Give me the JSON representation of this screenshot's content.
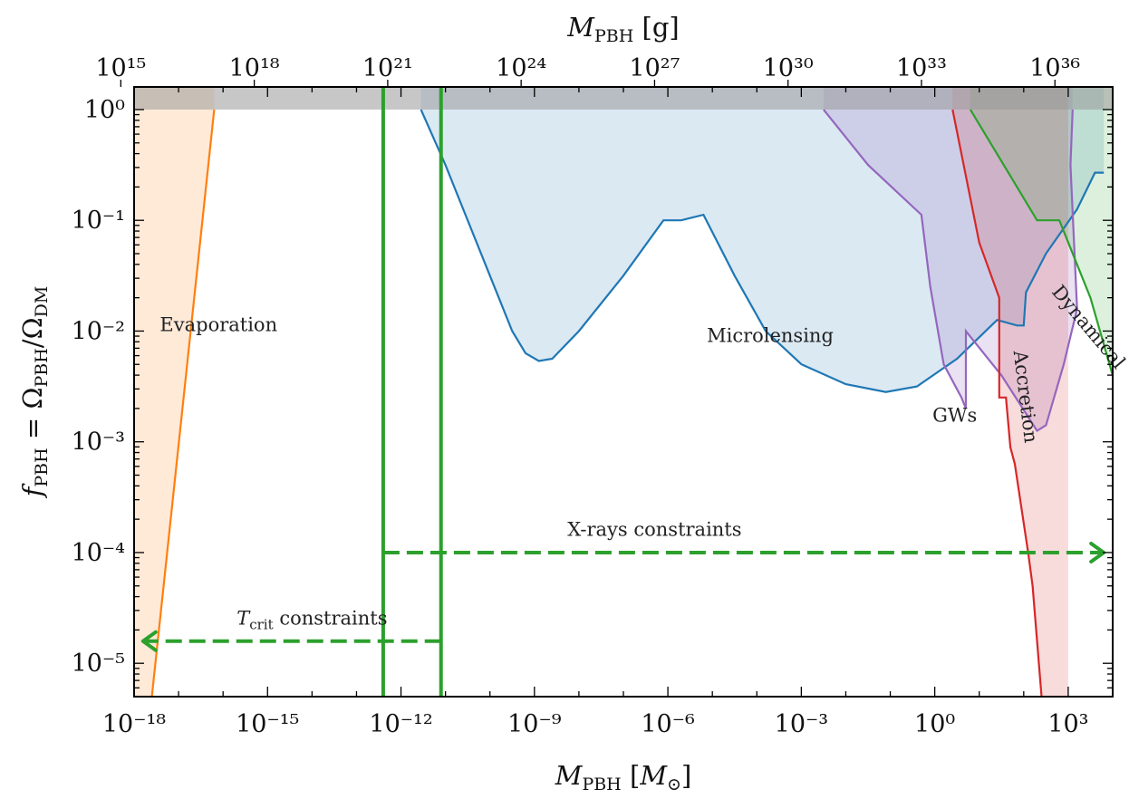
{
  "chart_data": {
    "type": "area",
    "title": "",
    "xlabel": "M_PBH [M_⊙]",
    "x2label": "M_PBH [g]",
    "ylabel": "f_PBH = Ω_PBH/Ω_DM",
    "xscale": "log",
    "yscale": "log",
    "xlim": [
      1e-18,
      10000
    ],
    "ylim": [
      5e-06,
      1.6
    ],
    "x2_per_x": 1.989e+33,
    "xticks": [
      -18,
      -15,
      -12,
      -9,
      -6,
      -3,
      0,
      3
    ],
    "xtick_labels": [
      "10⁻¹⁸",
      "10⁻¹⁵",
      "10⁻¹²",
      "10⁻⁹",
      "10⁻⁶",
      "10⁻³",
      "10⁰",
      "10³"
    ],
    "x2ticks": [
      15,
      18,
      21,
      24,
      27,
      30,
      33,
      36
    ],
    "x2tick_labels": [
      "10¹⁵",
      "10¹⁸",
      "10²¹",
      "10²⁴",
      "10²⁷",
      "10³⁰",
      "10³³",
      "10³⁶"
    ],
    "yticks": [
      0,
      -1,
      -2,
      -3,
      -4,
      -5
    ],
    "ytick_labels": [
      "10⁰",
      "10⁻¹",
      "10⁻²",
      "10⁻³",
      "10⁻⁴",
      "10⁻⁵"
    ],
    "grid": false,
    "legend": "none",
    "colors": {
      "evaporation": "#ff7f0e",
      "microlensing": "#1f77b4",
      "gws": "#9467bd",
      "accretion": "#d62728",
      "dynamical": "#2ca02c",
      "constraints": "#2ca02c",
      "band": "#999999"
    },
    "series": [
      {
        "name": "Evaporation",
        "key": "evaporation",
        "points": [
          [
            -17.6,
            -5.3
          ],
          [
            -16.2,
            0.0
          ]
        ]
      },
      {
        "name": "Microlensing",
        "key": "microlensing",
        "points": [
          [
            -11.55,
            0.0
          ],
          [
            -11.0,
            -0.5
          ],
          [
            -10.0,
            -1.5
          ],
          [
            -9.5,
            -2.0
          ],
          [
            -9.2,
            -2.2
          ],
          [
            -8.9,
            -2.27
          ],
          [
            -8.6,
            -2.25
          ],
          [
            -8.0,
            -2.0
          ],
          [
            -7.0,
            -1.5
          ],
          [
            -6.1,
            -1.0
          ],
          [
            -5.7,
            -1.0
          ],
          [
            -5.2,
            -0.95
          ],
          [
            -4.5,
            -1.5
          ],
          [
            -3.8,
            -2.0
          ],
          [
            -3.0,
            -2.3
          ],
          [
            -2.0,
            -2.48
          ],
          [
            -1.1,
            -2.55
          ],
          [
            -0.4,
            -2.5
          ],
          [
            0.5,
            -2.25
          ],
          [
            1.4,
            -1.9
          ],
          [
            1.85,
            -1.95
          ],
          [
            2.0,
            -1.95
          ],
          [
            2.05,
            -1.65
          ],
          [
            2.5,
            -1.3
          ],
          [
            3.2,
            -0.9
          ],
          [
            3.6,
            -0.57
          ],
          [
            3.8,
            -0.57
          ]
        ]
      },
      {
        "name": "GWs",
        "key": "gws",
        "points": [
          [
            -2.5,
            0.0
          ],
          [
            -1.5,
            -0.5
          ],
          [
            -0.3,
            -0.95
          ],
          [
            -0.1,
            -1.6
          ],
          [
            0.2,
            -2.3
          ],
          [
            0.6,
            -2.6
          ],
          [
            0.7,
            -2.7
          ],
          [
            0.7,
            -2.0
          ],
          [
            1.5,
            -2.4
          ],
          [
            2.3,
            -2.9
          ],
          [
            2.5,
            -2.85
          ],
          [
            2.9,
            -2.3
          ],
          [
            3.2,
            -1.8
          ],
          [
            3.05,
            -0.5
          ],
          [
            3.1,
            0.0
          ]
        ]
      },
      {
        "name": "Accretion",
        "key": "accretion",
        "points": [
          [
            0.4,
            0.0
          ],
          [
            1.0,
            -1.2
          ],
          [
            1.45,
            -1.7
          ],
          [
            1.45,
            -2.6
          ],
          [
            1.6,
            -2.6
          ],
          [
            1.7,
            -3.05
          ],
          [
            1.8,
            -3.2
          ],
          [
            2.1,
            -4.0
          ],
          [
            2.2,
            -4.3
          ],
          [
            2.4,
            -5.3
          ]
        ]
      },
      {
        "name": "Dynamical",
        "key": "dynamical",
        "points": [
          [
            0.8,
            0.0
          ],
          [
            1.7,
            -0.6
          ],
          [
            2.3,
            -1.0
          ],
          [
            2.8,
            -1.0
          ],
          [
            3.5,
            -1.7
          ],
          [
            4.0,
            -2.4
          ]
        ]
      }
    ],
    "fills": [
      {
        "key": "evaporation",
        "polygon": [
          [
            -18.0,
            0.204
          ],
          [
            -16.2,
            0.204
          ],
          [
            -16.2,
            0.0
          ],
          [
            -17.6,
            -5.3
          ],
          [
            -18.0,
            -5.3
          ]
        ]
      },
      {
        "key": "microlensing",
        "polygon": [
          [
            -11.55,
            0.204
          ],
          [
            3.8,
            0.204
          ]
        ]
      },
      {
        "key": "gws",
        "polygon": [
          [
            -2.5,
            0.204
          ],
          [
            3.1,
            0.204
          ]
        ]
      },
      {
        "key": "accretion",
        "polygon": [
          [
            0.4,
            0.204
          ],
          [
            3.0,
            0.204
          ],
          [
            3.0,
            -5.3
          ]
        ]
      },
      {
        "key": "dynamical",
        "polygon": [
          [
            0.8,
            0.204
          ],
          [
            4.0,
            0.204
          ]
        ]
      }
    ],
    "band": {
      "y_from": 0.0,
      "y_to": 0.204
    },
    "vlines": [
      -12.4,
      -11.1
    ],
    "region_labels": [
      {
        "text": "Evaporation",
        "x": -16.1,
        "y": -2.0,
        "rotate": 0
      },
      {
        "text": "Microlensing",
        "x": -3.7,
        "y": -2.1,
        "rotate": 0
      },
      {
        "text": "GWs",
        "x": 0.45,
        "y": -2.82,
        "rotate": 0
      },
      {
        "text": "Accretion",
        "x": 1.9,
        "y": -2.6,
        "rotate": 83
      },
      {
        "text": "Dynamical",
        "x": 3.35,
        "y": -2.0,
        "rotate": 50
      }
    ],
    "arrows": [
      {
        "name": "X-rays constraints",
        "label": "X-rays constraints",
        "x_from": -12.4,
        "x_to": 3.8,
        "y": -4.0,
        "direction": "right",
        "label_x": -6.3,
        "label_y": -3.85
      },
      {
        "name": "T_crit constraints",
        "label": "T_crit constraints",
        "x_from": -11.1,
        "x_to": -17.8,
        "y": -4.8,
        "direction": "left",
        "label_x": -14.0,
        "label_y": -4.65
      }
    ]
  }
}
